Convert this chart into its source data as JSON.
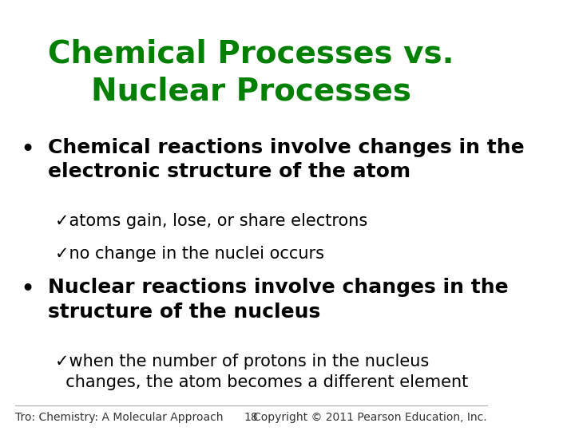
{
  "title_line1": "Chemical Processes vs.",
  "title_line2": "Nuclear Processes",
  "title_color": "#008000",
  "background_color": "#ffffff",
  "bullet1_main": "Chemical reactions involve changes in the\nelectronic structure of the atom",
  "bullet1_subs": [
    "✓atoms gain, lose, or share electrons",
    "✓no change in the nuclei occurs"
  ],
  "bullet2_main": "Nuclear reactions involve changes in the\nstructure of the nucleus",
  "bullet2_subs": [
    "✓when the number of protons in the nucleus\n  changes, the atom becomes a different element"
  ],
  "footer_left": "Tro: Chemistry: A Molecular Approach",
  "footer_center": "18",
  "footer_right": "Copyright © 2011 Pearson Education, Inc.",
  "footer_color": "#333333",
  "bullet_color": "#000000",
  "sub_color": "#000000",
  "main_fontsize": 18,
  "sub_fontsize": 15,
  "title_fontsize": 28,
  "footer_fontsize": 10
}
